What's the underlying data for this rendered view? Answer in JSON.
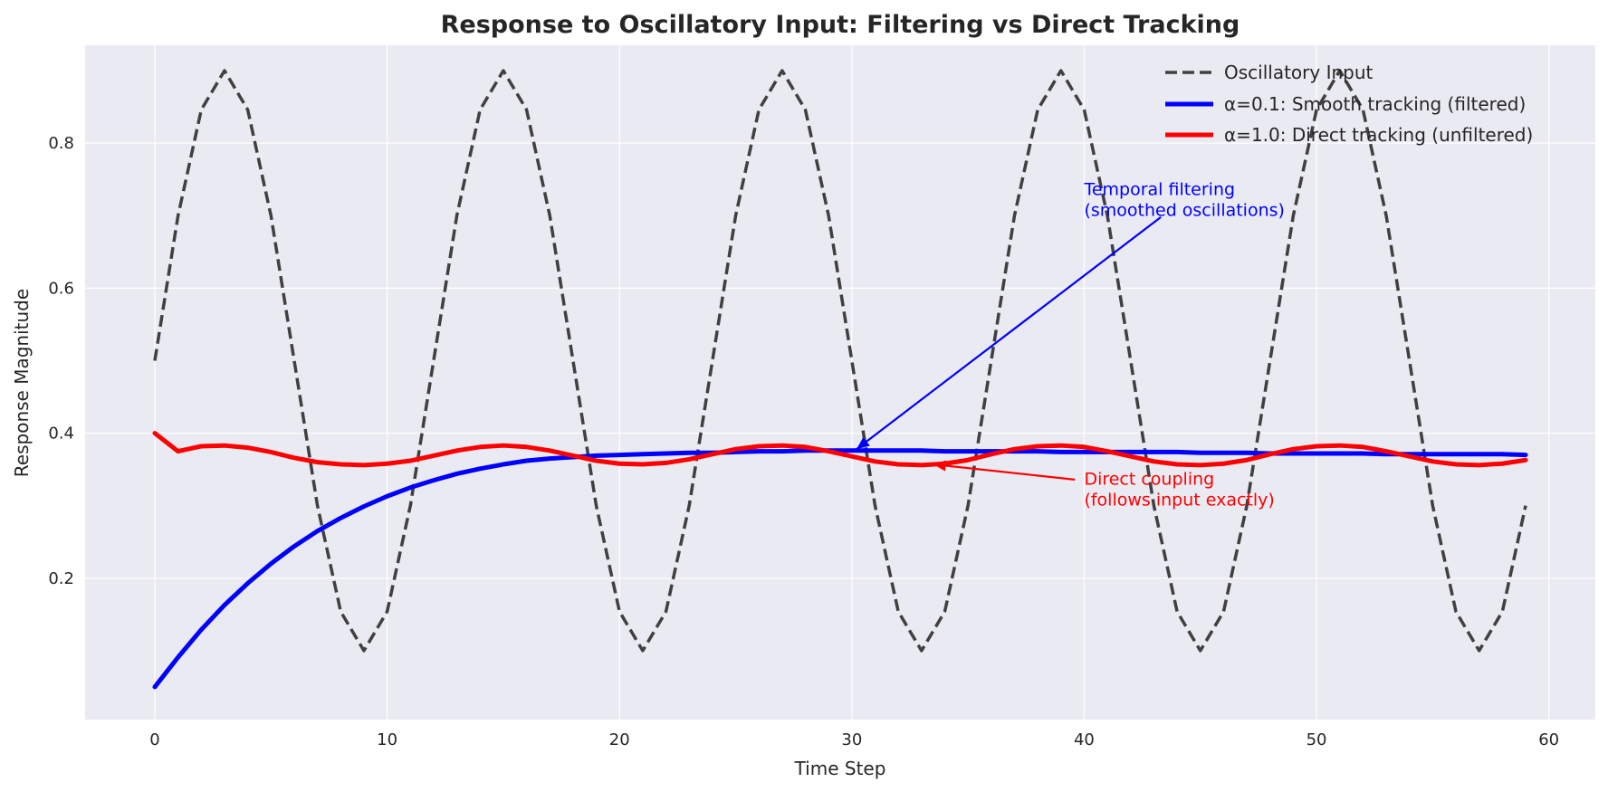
{
  "chart_data": {
    "type": "line",
    "title": "Response to Oscillatory Input: Filtering vs Direct Tracking",
    "xlabel": "Time Step",
    "ylabel": "Response Magnitude",
    "xlim": [
      -3,
      62
    ],
    "ylim": [
      0.005,
      0.935
    ],
    "xticks": [
      0,
      10,
      20,
      30,
      40,
      50,
      60
    ],
    "yticks": [
      0.2,
      0.4,
      0.6,
      0.8
    ],
    "grid": true,
    "legend_placement": "top-right",
    "series": [
      {
        "name": "Oscillatory Input",
        "color": "#404040",
        "style": "dashed",
        "x": [
          0,
          1,
          2,
          3,
          4,
          5,
          6,
          7,
          8,
          9,
          10,
          11,
          12,
          13,
          14,
          15,
          16,
          17,
          18,
          19,
          20,
          21,
          22,
          23,
          24,
          25,
          26,
          27,
          28,
          29,
          30,
          31,
          32,
          33,
          34,
          35,
          36,
          37,
          38,
          39,
          40,
          41,
          42,
          43,
          44,
          45,
          46,
          47,
          48,
          49,
          50,
          51,
          52,
          53,
          54,
          55,
          56,
          57,
          58,
          59
        ],
        "values": [
          0.5,
          0.7,
          0.846,
          0.9,
          0.846,
          0.7,
          0.5,
          0.3,
          0.154,
          0.1,
          0.154,
          0.3,
          0.5,
          0.7,
          0.846,
          0.9,
          0.846,
          0.7,
          0.5,
          0.3,
          0.154,
          0.1,
          0.154,
          0.3,
          0.5,
          0.7,
          0.846,
          0.9,
          0.846,
          0.7,
          0.5,
          0.3,
          0.154,
          0.1,
          0.154,
          0.3,
          0.5,
          0.7,
          0.846,
          0.9,
          0.846,
          0.7,
          0.5,
          0.3,
          0.154,
          0.1,
          0.154,
          0.3,
          0.5,
          0.7,
          0.846,
          0.9,
          0.846,
          0.7,
          0.5,
          0.3,
          0.154,
          0.1,
          0.154,
          0.3
        ]
      },
      {
        "name": "α=0.1: Smooth tracking (filtered)",
        "color": "#0000ff",
        "style": "solid",
        "x": [
          0,
          1,
          2,
          3,
          4,
          5,
          6,
          7,
          8,
          9,
          10,
          11,
          12,
          13,
          14,
          15,
          16,
          17,
          18,
          19,
          20,
          21,
          22,
          23,
          24,
          25,
          26,
          27,
          28,
          29,
          30,
          31,
          32,
          33,
          34,
          35,
          36,
          37,
          38,
          39,
          40,
          41,
          42,
          43,
          44,
          45,
          46,
          47,
          48,
          49,
          50,
          51,
          52,
          53,
          54,
          55,
          56,
          57,
          58,
          59
        ],
        "values": [
          0.05,
          0.091,
          0.129,
          0.163,
          0.193,
          0.22,
          0.244,
          0.265,
          0.283,
          0.299,
          0.313,
          0.325,
          0.335,
          0.344,
          0.351,
          0.357,
          0.362,
          0.365,
          0.367,
          0.369,
          0.37,
          0.371,
          0.372,
          0.373,
          0.373,
          0.374,
          0.375,
          0.375,
          0.376,
          0.376,
          0.376,
          0.376,
          0.376,
          0.376,
          0.375,
          0.375,
          0.375,
          0.375,
          0.375,
          0.374,
          0.374,
          0.374,
          0.374,
          0.374,
          0.374,
          0.373,
          0.373,
          0.373,
          0.372,
          0.372,
          0.372,
          0.372,
          0.372,
          0.371,
          0.371,
          0.371,
          0.371,
          0.371,
          0.371,
          0.37
        ]
      },
      {
        "name": "α=1.0: Direct tracking (unfiltered)",
        "color": "#ff0000",
        "style": "solid",
        "x": [
          0,
          1,
          2,
          3,
          4,
          5,
          6,
          7,
          8,
          9,
          10,
          11,
          12,
          13,
          14,
          15,
          16,
          17,
          18,
          19,
          20,
          21,
          22,
          23,
          24,
          25,
          26,
          27,
          28,
          29,
          30,
          31,
          32,
          33,
          34,
          35,
          36,
          37,
          38,
          39,
          40,
          41,
          42,
          43,
          44,
          45,
          46,
          47,
          48,
          49,
          50,
          51,
          52,
          53,
          54,
          55,
          56,
          57,
          58,
          59
        ],
        "values": [
          0.4,
          0.375,
          0.382,
          0.383,
          0.38,
          0.374,
          0.366,
          0.36,
          0.357,
          0.356,
          0.358,
          0.362,
          0.369,
          0.376,
          0.381,
          0.383,
          0.381,
          0.376,
          0.369,
          0.362,
          0.358,
          0.357,
          0.359,
          0.364,
          0.371,
          0.378,
          0.382,
          0.383,
          0.381,
          0.375,
          0.368,
          0.361,
          0.357,
          0.356,
          0.358,
          0.363,
          0.371,
          0.378,
          0.382,
          0.383,
          0.381,
          0.375,
          0.368,
          0.361,
          0.357,
          0.356,
          0.358,
          0.363,
          0.371,
          0.378,
          0.382,
          0.383,
          0.381,
          0.375,
          0.368,
          0.361,
          0.357,
          0.356,
          0.358,
          0.363
        ]
      }
    ],
    "annotations": [
      {
        "lines": [
          "Temporal filtering",
          "(smoothed oscillations)"
        ],
        "color": "#0000ff",
        "text_xy": [
          40,
          0.7
        ],
        "arrow_from": [
          43.3,
          0.698
        ],
        "arrow_to": [
          30.2,
          0.378
        ]
      },
      {
        "lines": [
          "Direct coupling",
          "(follows input exactly)"
        ],
        "color": "#ff0000",
        "text_xy": [
          40,
          0.3
        ],
        "arrow_from": [
          39.6,
          0.336
        ],
        "arrow_to": [
          33.5,
          0.357
        ]
      }
    ]
  }
}
